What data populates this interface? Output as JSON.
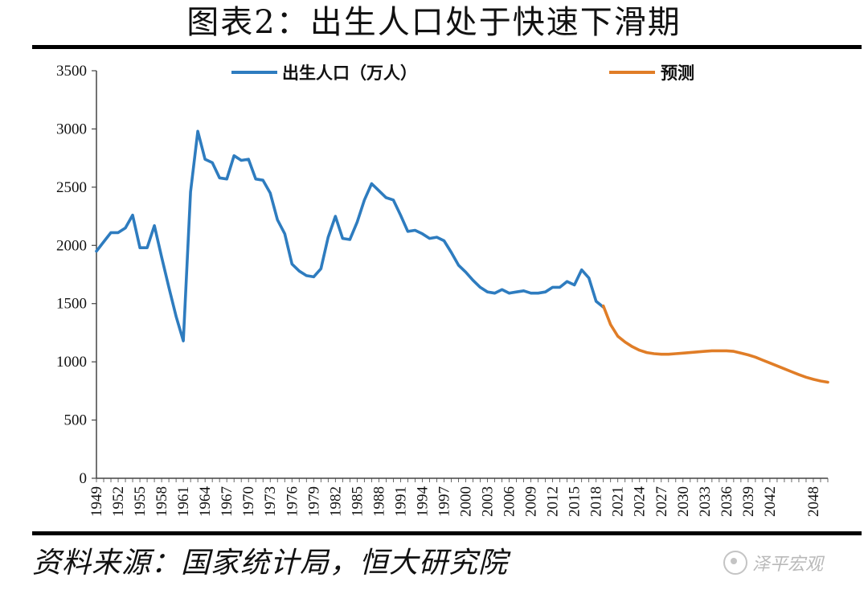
{
  "title": "图表2：出生人口处于快速下滑期",
  "source": "资料来源：国家统计局，恒大研究院",
  "watermark": "泽平宏观",
  "colors": {
    "actual": "#2e7cbf",
    "forecast": "#e07d27",
    "axis": "#444444"
  },
  "chart_data": {
    "type": "line",
    "ylim": [
      0,
      3500
    ],
    "yticks": [
      0,
      500,
      1000,
      1500,
      2000,
      2500,
      3000,
      3500
    ],
    "xlim": [
      1949,
      2050
    ],
    "xticks": [
      1949,
      1952,
      1955,
      1958,
      1961,
      1964,
      1967,
      1970,
      1973,
      1976,
      1979,
      1982,
      1985,
      1988,
      1991,
      1994,
      1997,
      2000,
      2003,
      2006,
      2009,
      2012,
      2015,
      2018,
      2021,
      2024,
      2027,
      2030,
      2033,
      2036,
      2039,
      2042,
      2048
    ],
    "legend_position": "top",
    "series": [
      {
        "name": "出生人口（万人）",
        "x": [
          1949,
          1950,
          1951,
          1952,
          1953,
          1954,
          1955,
          1956,
          1957,
          1958,
          1959,
          1960,
          1961,
          1962,
          1963,
          1964,
          1965,
          1966,
          1967,
          1968,
          1969,
          1970,
          1971,
          1972,
          1973,
          1974,
          1975,
          1976,
          1977,
          1978,
          1979,
          1980,
          1981,
          1982,
          1983,
          1984,
          1985,
          1986,
          1987,
          1988,
          1989,
          1990,
          1991,
          1992,
          1993,
          1994,
          1995,
          1996,
          1997,
          1998,
          1999,
          2000,
          2001,
          2002,
          2003,
          2004,
          2005,
          2006,
          2007,
          2008,
          2009,
          2010,
          2011,
          2012,
          2013,
          2014,
          2015,
          2016,
          2017,
          2018,
          2019
        ],
        "values": [
          1950,
          2030,
          2110,
          2110,
          2150,
          2260,
          1980,
          1980,
          2170,
          1900,
          1640,
          1390,
          1180,
          2460,
          2980,
          2740,
          2710,
          2580,
          2570,
          2770,
          2730,
          2740,
          2570,
          2560,
          2450,
          2220,
          2100,
          1840,
          1780,
          1740,
          1730,
          1800,
          2070,
          2250,
          2060,
          2050,
          2200,
          2390,
          2530,
          2470,
          2410,
          2390,
          2260,
          2120,
          2130,
          2100,
          2060,
          2070,
          2040,
          1940,
          1830,
          1770,
          1700,
          1640,
          1600,
          1590,
          1620,
          1590,
          1600,
          1610,
          1590,
          1590,
          1600,
          1640,
          1640,
          1690,
          1660,
          1790,
          1720,
          1520,
          1470
        ]
      },
      {
        "name": "预测",
        "x": [
          2019,
          2020,
          2021,
          2022,
          2023,
          2024,
          2025,
          2026,
          2027,
          2028,
          2029,
          2030,
          2031,
          2032,
          2033,
          2034,
          2035,
          2036,
          2037,
          2038,
          2039,
          2040,
          2041,
          2042,
          2043,
          2044,
          2045,
          2046,
          2047,
          2048,
          2049,
          2050
        ],
        "values": [
          1480,
          1320,
          1220,
          1170,
          1130,
          1100,
          1080,
          1070,
          1065,
          1065,
          1070,
          1075,
          1080,
          1085,
          1090,
          1095,
          1095,
          1095,
          1090,
          1075,
          1060,
          1040,
          1015,
          990,
          965,
          940,
          915,
          890,
          868,
          850,
          835,
          825
        ]
      }
    ]
  }
}
